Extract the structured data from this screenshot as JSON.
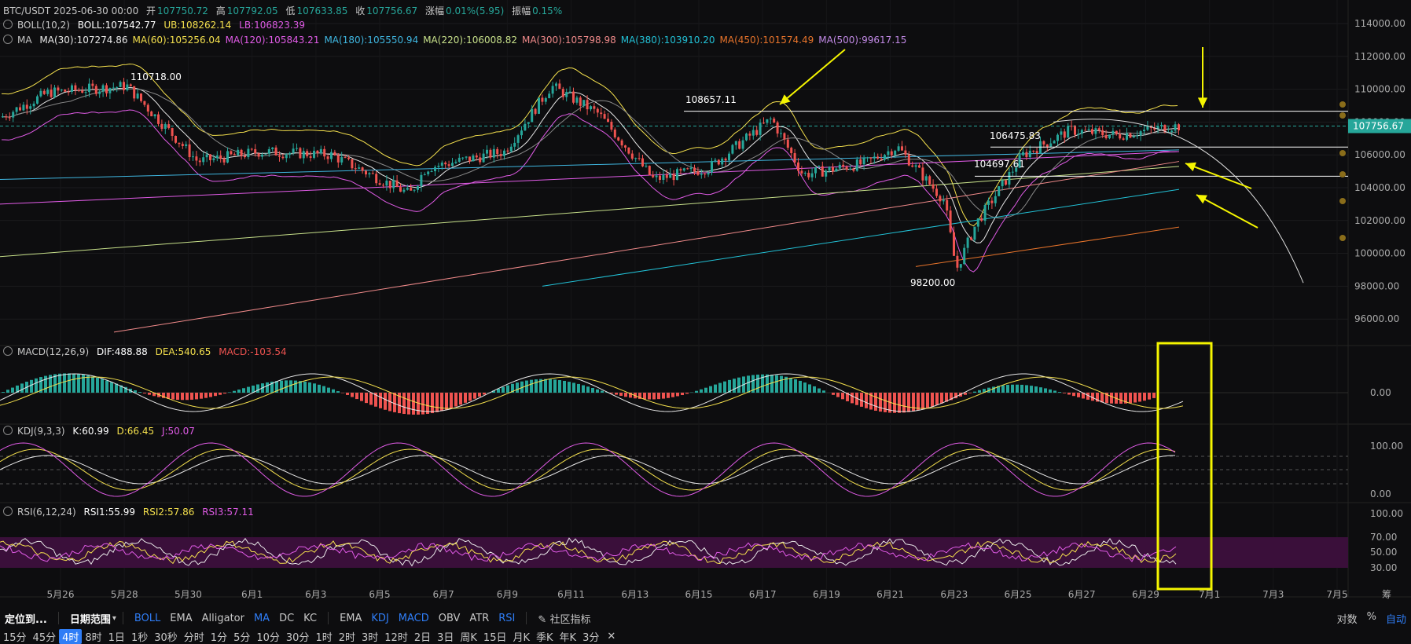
{
  "header": {
    "symbol_line": "BTC/USDT  2025-06-30 00:00",
    "open_label": "开",
    "open": "107750.72",
    "high_label": "高",
    "high": "107792.05",
    "low_label": "低",
    "low": "107633.85",
    "close_label": "收",
    "close": "107756.67",
    "change_label": "涨幅",
    "change": "0.01%(5.95)",
    "amp_label": "振幅",
    "amp": "0.15%"
  },
  "boll": {
    "name": "BOLL(10,2)",
    "boll": "BOLL:107542.77",
    "ub": "UB:108262.14",
    "lb": "LB:106823.39"
  },
  "ma": {
    "name": "MA",
    "items": [
      {
        "t": "MA(30):107274.86",
        "c": "#e8e8e8"
      },
      {
        "t": "MA(60):105256.04",
        "c": "#f4e04d"
      },
      {
        "t": "MA(120):105843.21",
        "c": "#e05be6"
      },
      {
        "t": "MA(180):105550.94",
        "c": "#3fb6e0"
      },
      {
        "t": "MA(220):106008.82",
        "c": "#c7e08a"
      },
      {
        "t": "MA(300):105798.98",
        "c": "#f08a8a"
      },
      {
        "t": "MA(380):103910.20",
        "c": "#22c1d6"
      },
      {
        "t": "MA(450):101574.49",
        "c": "#e8742b"
      },
      {
        "t": "MA(500):99617.15",
        "c": "#c28ae6"
      }
    ]
  },
  "macd": {
    "name": "MACD(12,26,9)",
    "dif": "DIF:488.88",
    "dea": "DEA:540.65",
    "macd": "MACD:-103.54"
  },
  "kdj": {
    "name": "KDJ(9,3,3)",
    "k": "K:60.99",
    "d": "D:66.45",
    "j": "J:50.07"
  },
  "rsi": {
    "name": "RSI(6,12,24)",
    "r1": "RSI1:55.99",
    "r2": "RSI2:57.86",
    "r3": "RSI3:57.11"
  },
  "price_axis": [
    "114000.00",
    "112000.00",
    "110000.00",
    "108000.00",
    "106000.00",
    "104000.00",
    "102000.00",
    "100000.00",
    "98000.00",
    "96000.00"
  ],
  "current_price": "107756.67",
  "macd_axis": [
    "0.00"
  ],
  "kdj_axis": [
    "100.00",
    "0.00"
  ],
  "rsi_axis": [
    "100.00",
    "70.00",
    "50.00",
    "30.00"
  ],
  "dates": [
    "5月26",
    "5月28",
    "5月30",
    "6月1",
    "6月3",
    "6月5",
    "6月7",
    "6月9",
    "6月11",
    "6月13",
    "6月15",
    "6月17",
    "6月19",
    "6月21",
    "6月23",
    "6月25",
    "6月27",
    "6月29",
    "7月1",
    "7月3",
    "7月5"
  ],
  "annotations": {
    "hi1": "110718.00",
    "hi2": "108657.11",
    "lvl1": "106475.83",
    "lvl2": "104697.61",
    "low": "98200.00"
  },
  "toolbar": {
    "locate": "定位到...",
    "range": "日期范围",
    "main": [
      "BOLL",
      "EMA",
      "Alligator",
      "MA",
      "DC",
      "KC"
    ],
    "sub": [
      "EMA",
      "KDJ",
      "MACD",
      "OBV",
      "ATR",
      "RSI"
    ],
    "community": "社区指标",
    "scale": "对数",
    "pct": "%",
    "auto": "自动",
    "dates_corner": "筹"
  },
  "timeframes": [
    "15分",
    "45分",
    "4时",
    "8时",
    "1日",
    "1秒",
    "30秒",
    "分时",
    "1分",
    "5分",
    "10分",
    "30分",
    "1时",
    "2时",
    "3时",
    "12时",
    "2日",
    "3日",
    "周K",
    "15日",
    "月K",
    "季K",
    "年K",
    "3分"
  ],
  "colors": {
    "up": "#26a69a",
    "down": "#ef5350",
    "accent": "#2f7df6",
    "yellow": "#f5f500"
  }
}
